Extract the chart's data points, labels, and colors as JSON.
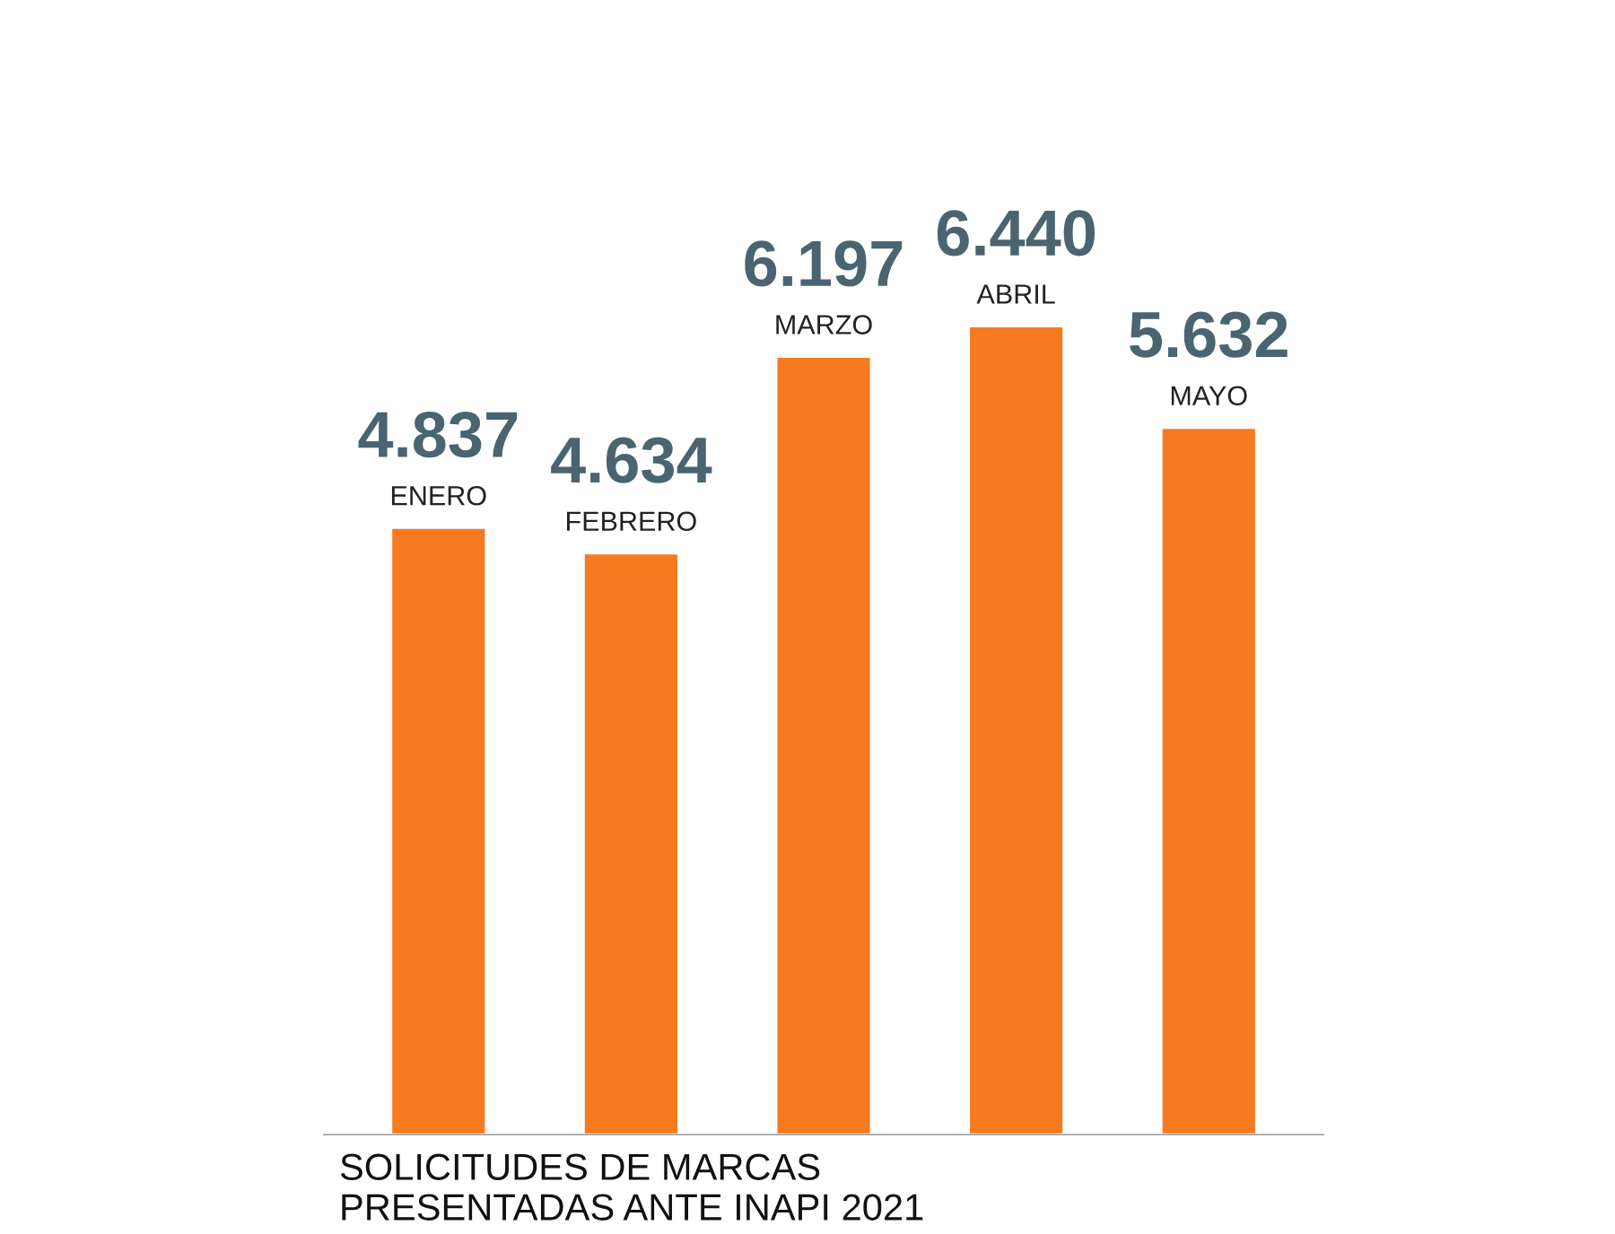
{
  "chart_data": {
    "type": "bar",
    "title": "SOLICITUDES DE MARCAS\nPRESENTADAS ANTE INAPI 2021",
    "categories": [
      "ENERO",
      "FEBRERO",
      "MARZO",
      "ABRIL",
      "MAYO"
    ],
    "values": [
      4837,
      4634,
      6197,
      6440,
      5632
    ],
    "value_labels": [
      "4.837",
      "4.634",
      "6.197",
      "6.440",
      "5.632"
    ],
    "color": "#f77a1f"
  }
}
